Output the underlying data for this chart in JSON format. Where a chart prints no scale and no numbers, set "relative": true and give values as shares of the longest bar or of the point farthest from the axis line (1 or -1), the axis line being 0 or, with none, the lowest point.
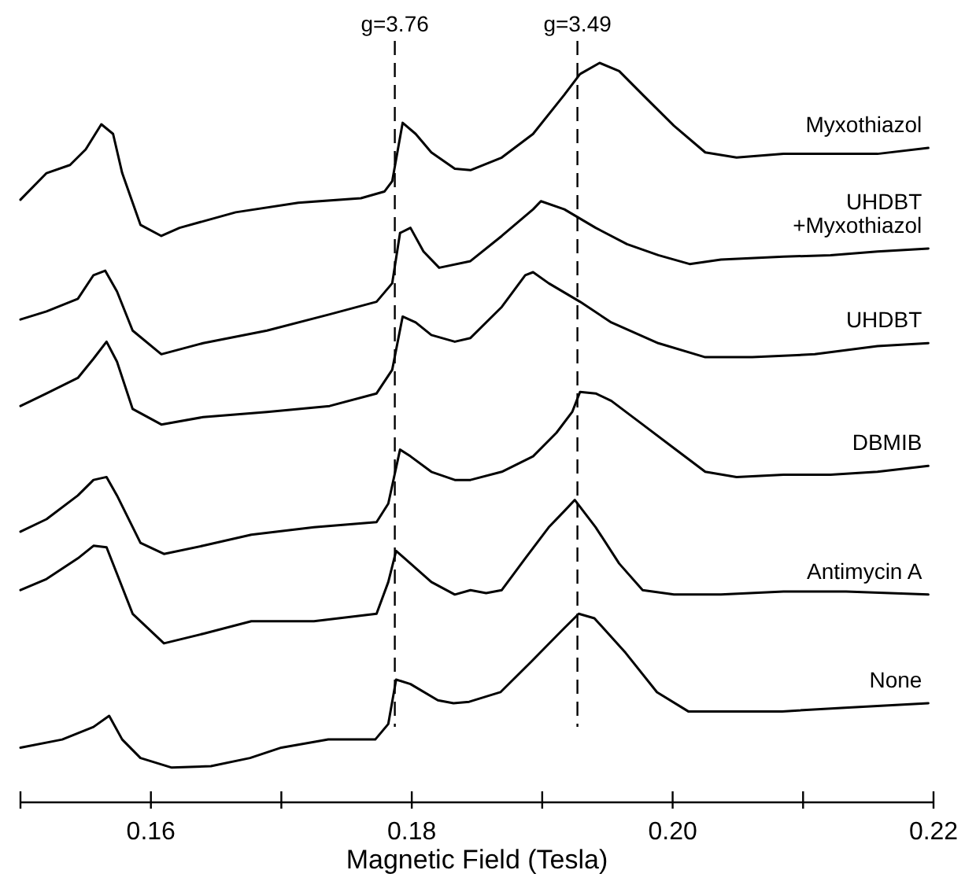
{
  "chart_data": {
    "type": "line",
    "relative": true,
    "xlabel": "Magnetic Field (Tesla)",
    "xlim": [
      0.15,
      0.22
    ],
    "xticks": [
      {
        "value": 0.15,
        "label": null
      },
      0.16,
      {
        "value": 0.17,
        "label": null
      },
      0.18,
      {
        "value": 0.19,
        "label": null
      },
      {
        "value": 0.2,
        "label": "0.20"
      },
      {
        "value": 0.21,
        "label": null
      },
      0.22
    ],
    "ref_lines": [
      {
        "axis": "x",
        "value": 0.1787,
        "color": "#000000",
        "line_style": "dashed"
      },
      {
        "axis": "x",
        "value": 0.1927,
        "color": "#000000",
        "line_style": "dashed"
      }
    ],
    "annotations": [
      "g=3.76",
      "g=3.49"
    ],
    "series": [
      {
        "name": "Myxothiazol",
        "color": "#000000",
        "x": [
          0.15,
          0.152,
          0.1538,
          0.155,
          0.1562,
          0.1571,
          0.1578,
          0.1592,
          0.1608,
          0.1622,
          0.1665,
          0.1713,
          0.1761,
          0.1779,
          0.1785,
          0.1793,
          0.1803,
          0.1815,
          0.1833,
          0.1845,
          0.1869,
          0.1893,
          0.1917,
          0.1929,
          0.1944,
          0.1959,
          0.1977,
          0.2001,
          0.2025,
          0.2049,
          0.2085,
          0.2121,
          0.2157,
          0.2196
        ],
        "values": [
          0.815,
          0.851,
          0.862,
          0.883,
          0.917,
          0.904,
          0.851,
          0.781,
          0.766,
          0.777,
          0.798,
          0.811,
          0.817,
          0.826,
          0.84,
          0.919,
          0.904,
          0.879,
          0.857,
          0.855,
          0.872,
          0.904,
          0.957,
          0.985,
          1,
          0.989,
          0.957,
          0.915,
          0.879,
          0.872,
          0.877,
          0.877,
          0.877,
          0.885
        ]
      },
      {
        "name": "UHDBT\n+Myxothiazol",
        "color": "#000000",
        "x": [
          0.15,
          0.152,
          0.1544,
          0.1556,
          0.1565,
          0.1574,
          0.1586,
          0.1608,
          0.164,
          0.1689,
          0.1737,
          0.1773,
          0.1785,
          0.1791,
          0.1799,
          0.1809,
          0.1821,
          0.1845,
          0.1869,
          0.1893,
          0.1899,
          0.1917,
          0.1941,
          0.1965,
          0.1989,
          0.2013,
          0.2037,
          0.2085,
          0.2121,
          0.2157,
          0.2196
        ],
        "values": [
          0.653,
          0.664,
          0.681,
          0.713,
          0.719,
          0.691,
          0.638,
          0.606,
          0.621,
          0.638,
          0.66,
          0.677,
          0.702,
          0.77,
          0.777,
          0.745,
          0.723,
          0.732,
          0.766,
          0.802,
          0.813,
          0.802,
          0.777,
          0.755,
          0.74,
          0.728,
          0.734,
          0.738,
          0.74,
          0.745,
          0.749
        ]
      },
      {
        "name": "UHDBT",
        "color": "#000000",
        "x": [
          0.15,
          0.152,
          0.1544,
          0.1556,
          0.1566,
          0.1574,
          0.1586,
          0.1608,
          0.164,
          0.1689,
          0.1737,
          0.1773,
          0.1785,
          0.1793,
          0.1803,
          0.1815,
          0.1833,
          0.1845,
          0.1869,
          0.1887,
          0.1893,
          0.1905,
          0.1929,
          0.1953,
          0.1989,
          0.2025,
          0.2061,
          0.2109,
          0.2157,
          0.2196
        ],
        "values": [
          0.536,
          0.553,
          0.574,
          0.6,
          0.623,
          0.596,
          0.532,
          0.511,
          0.521,
          0.528,
          0.536,
          0.553,
          0.585,
          0.657,
          0.649,
          0.632,
          0.623,
          0.628,
          0.67,
          0.713,
          0.717,
          0.702,
          0.677,
          0.649,
          0.621,
          0.602,
          0.602,
          0.606,
          0.617,
          0.621
        ]
      },
      {
        "name": "DBMIB",
        "color": "#000000",
        "x": [
          0.15,
          0.152,
          0.1544,
          0.1556,
          0.1566,
          0.1574,
          0.1592,
          0.161,
          0.164,
          0.1677,
          0.1725,
          0.1773,
          0.1782,
          0.1791,
          0.1799,
          0.1815,
          0.1833,
          0.1845,
          0.1869,
          0.1893,
          0.1911,
          0.1923,
          0.1929,
          0.1941,
          0.1953,
          0.1977,
          0.2001,
          0.2025,
          0.2049,
          0.2085,
          0.2121,
          0.2157,
          0.2196
        ],
        "values": [
          0.366,
          0.383,
          0.415,
          0.436,
          0.44,
          0.415,
          0.351,
          0.336,
          0.347,
          0.362,
          0.372,
          0.379,
          0.404,
          0.477,
          0.468,
          0.447,
          0.436,
          0.436,
          0.447,
          0.468,
          0.5,
          0.528,
          0.555,
          0.553,
          0.543,
          0.511,
          0.479,
          0.447,
          0.44,
          0.443,
          0.443,
          0.447,
          0.455
        ]
      },
      {
        "name": "Antimycin A",
        "color": "#000000",
        "x": [
          0.15,
          0.152,
          0.1544,
          0.1556,
          0.1566,
          0.1574,
          0.1586,
          0.161,
          0.164,
          0.1677,
          0.1725,
          0.1773,
          0.1782,
          0.1788,
          0.1799,
          0.1815,
          0.1833,
          0.1845,
          0.1857,
          0.1869,
          0.1887,
          0.1905,
          0.1917,
          0.1925,
          0.1941,
          0.1959,
          0.1977,
          0.2001,
          0.2037,
          0.2085,
          0.2133,
          0.2196
        ],
        "values": [
          0.287,
          0.302,
          0.33,
          0.347,
          0.345,
          0.309,
          0.255,
          0.215,
          0.228,
          0.245,
          0.245,
          0.255,
          0.298,
          0.34,
          0.323,
          0.298,
          0.281,
          0.287,
          0.283,
          0.287,
          0.33,
          0.372,
          0.394,
          0.409,
          0.372,
          0.323,
          0.287,
          0.281,
          0.281,
          0.285,
          0.285,
          0.281
        ]
      },
      {
        "name": "None",
        "color": "#000000",
        "x": [
          0.15,
          0.1532,
          0.1556,
          0.1568,
          0.1578,
          0.1592,
          0.1616,
          0.1646,
          0.1676,
          0.17,
          0.1736,
          0.1772,
          0.1782,
          0.1788,
          0.1799,
          0.182,
          0.1832,
          0.1844,
          0.1868,
          0.1892,
          0.1916,
          0.1928,
          0.194,
          0.1964,
          0.1988,
          0.2012,
          0.2048,
          0.2084,
          0.2132,
          0.2196
        ],
        "values": [
          0.074,
          0.085,
          0.102,
          0.117,
          0.085,
          0.06,
          0.047,
          0.049,
          0.06,
          0.074,
          0.085,
          0.085,
          0.106,
          0.166,
          0.16,
          0.138,
          0.134,
          0.136,
          0.149,
          0.191,
          0.234,
          0.255,
          0.249,
          0.202,
          0.149,
          0.123,
          0.123,
          0.123,
          0.128,
          0.134
        ]
      }
    ]
  }
}
